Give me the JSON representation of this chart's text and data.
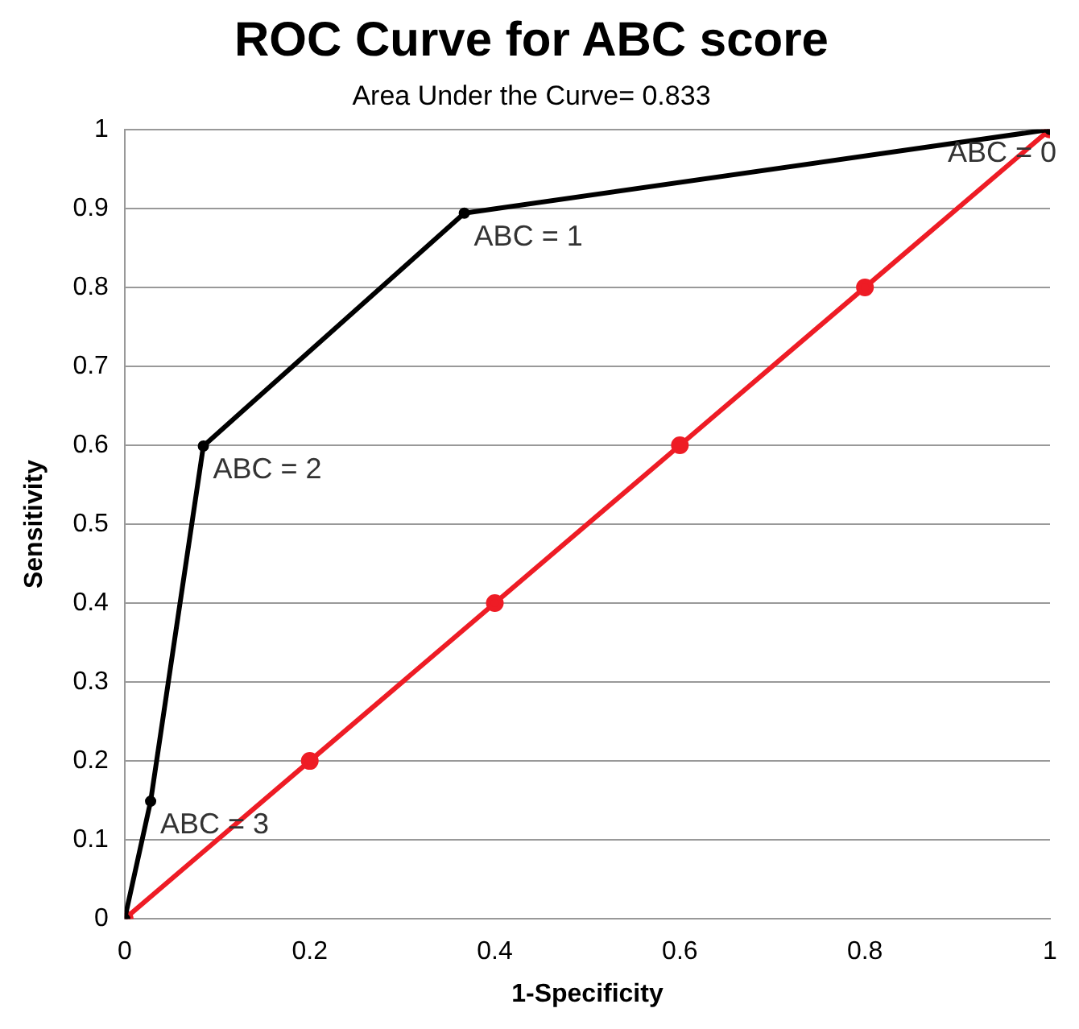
{
  "chart_data": {
    "type": "line",
    "title": "ROC Curve for ABC score",
    "subtitle": "Area Under the Curve= 0.833",
    "xlabel": "1-Specificity",
    "ylabel": "Sensitivity",
    "series": [
      {
        "color": "#000000",
        "x": [
          0,
          0.028,
          0.085,
          0.367,
          1
        ],
        "values": [
          0,
          0.149,
          0.599,
          0.894,
          1
        ]
      },
      {
        "color": "#ee1c25",
        "x": [
          0,
          0.2,
          0.4,
          0.6,
          0.8,
          1
        ],
        "values": [
          0,
          0.2,
          0.4,
          0.6,
          0.8,
          1
        ]
      }
    ],
    "xlim": [
      0,
      1
    ],
    "xticks": [
      0,
      0.2,
      0.4,
      0.6,
      0.8,
      1
    ],
    "ylim": [
      0,
      1
    ],
    "yticks": [
      0,
      0.1,
      0.2,
      0.3,
      0.4,
      0.5,
      0.6,
      0.7,
      0.8,
      0.9,
      1
    ],
    "annotations": [
      {
        "text": "ABC = 3",
        "x": 0.028,
        "y": 0.149
      },
      {
        "text": "ABC = 2",
        "x": 0.085,
        "y": 0.599
      },
      {
        "text": "ABC = 1",
        "x": 0.367,
        "y": 0.894
      },
      {
        "text": "ABC = 0",
        "x": 1,
        "y": 1
      }
    ],
    "grid": "y",
    "legend": false,
    "marker": "circle",
    "line_style": "solid"
  }
}
